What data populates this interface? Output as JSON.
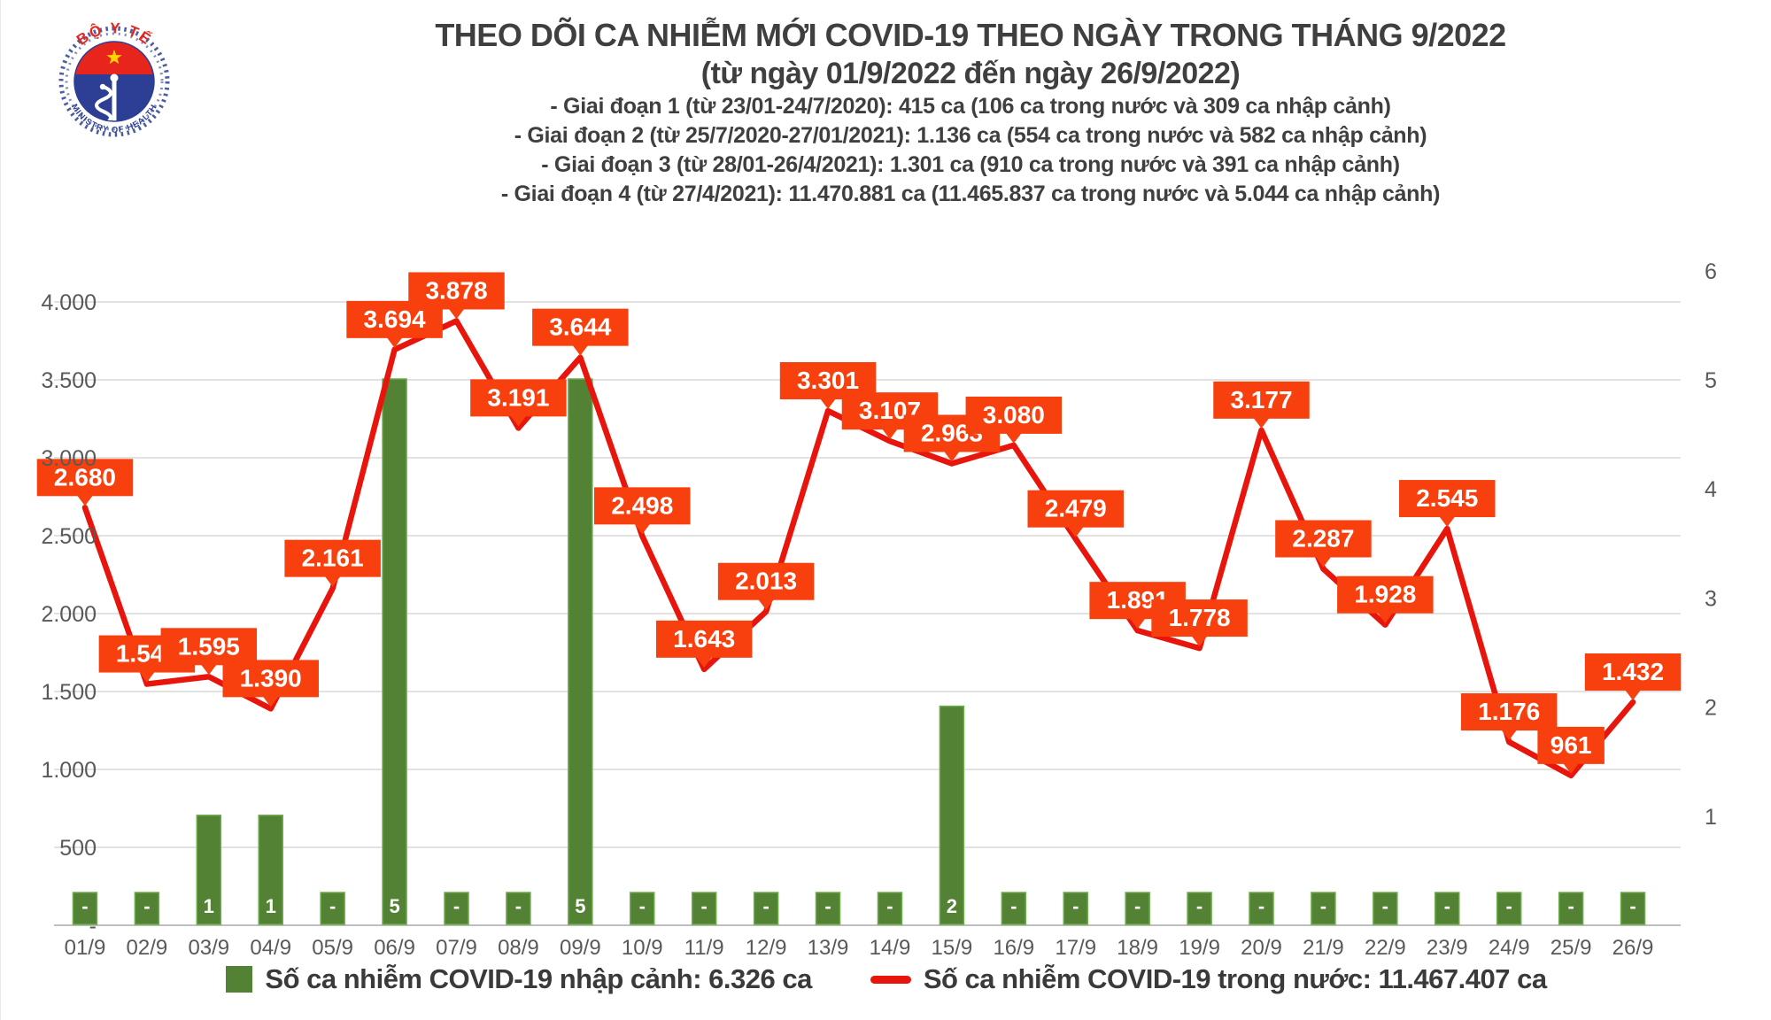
{
  "logo": {
    "top_text": "BỘ Y TẾ",
    "bottom_text": "MINISTRY OF HEALTH",
    "flag_red": "#e8251c",
    "circle_blue": "#2c3f94",
    "star_yellow": "#ffd400"
  },
  "header": {
    "title": "THEO DÕI CA NHIỄM MỚI COVID-19 THEO NGÀY TRONG THÁNG 9/2022",
    "subtitle": "(từ ngày 01/9/2022 đến ngày 26/9/2022)",
    "phases": [
      "- Giai đoạn 1 (từ 23/01-24/7/2020): 415 ca (106 ca trong nước và 309 ca nhập cảnh)",
      "- Giai đoạn 2 (từ 25/7/2020-27/01/2021): 1.136 ca (554 ca trong nước và 582 ca nhập cảnh)",
      "- Giai đoạn 3 (từ 28/01-26/4/2021): 1.301 ca (910 ca trong nước và 391 ca nhập cảnh)",
      "- Giai đoạn 4 (từ 27/4/2021): 11.470.881 ca (11.465.837 ca trong nước và 5.044 ca nhập cảnh)"
    ]
  },
  "chart_data": {
    "type": "combo",
    "categories": [
      "01/9",
      "02/9",
      "03/9",
      "04/9",
      "05/9",
      "06/9",
      "07/9",
      "08/9",
      "09/9",
      "10/9",
      "11/9",
      "12/9",
      "13/9",
      "14/9",
      "15/9",
      "16/9",
      "17/9",
      "18/9",
      "19/9",
      "20/9",
      "21/9",
      "22/9",
      "23/9",
      "24/9",
      "25/9",
      "26/9"
    ],
    "series": [
      {
        "name": "Số ca nhiễm COVID-19 trong nước",
        "type": "line",
        "axis": "left",
        "color": "#e8150d",
        "values": [
          2680,
          1548,
          1595,
          1390,
          2161,
          3694,
          3878,
          3191,
          3644,
          2498,
          1643,
          2013,
          3301,
          3107,
          2963,
          3080,
          2479,
          1891,
          1778,
          3177,
          2287,
          1928,
          2545,
          1176,
          961,
          1432
        ],
        "labels": [
          "2.680",
          "1.548",
          "1.595",
          "1.390",
          "2.161",
          "3.694",
          "3.878",
          "3.191",
          "3.644",
          "2.498",
          "1.643",
          "2.013",
          "3.301",
          "3.107",
          "2.963",
          "3.080",
          "2.479",
          "1.891",
          "1.778",
          "3.177",
          "2.287",
          "1.928",
          "2.545",
          "1.176",
          "961",
          "1.432"
        ]
      },
      {
        "name": "Số ca nhiễm COVID-19 nhập cảnh",
        "type": "bar",
        "axis": "right",
        "color": "#548235",
        "border_color": "#6bac4b",
        "values": [
          0,
          0,
          1,
          1,
          0,
          5,
          0,
          0,
          5,
          0,
          0,
          0,
          0,
          0,
          2,
          0,
          0,
          0,
          0,
          0,
          0,
          0,
          0,
          0,
          0,
          0
        ],
        "labels": [
          "-",
          "-",
          "1",
          "1",
          "-",
          "5",
          "-",
          "-",
          "5",
          "-",
          "-",
          "-",
          "-",
          "-",
          "2",
          "-",
          "-",
          "-",
          "-",
          "-",
          "-",
          "-",
          "-",
          "-",
          "-",
          "-"
        ]
      }
    ],
    "y_left": {
      "min": 0,
      "max": 4000,
      "step": 500,
      "ticks": [
        "-",
        "500",
        "1.000",
        "1.500",
        "2.000",
        "2.500",
        "3.000",
        "3.500",
        "4.000"
      ]
    },
    "y_right": {
      "min": 0,
      "max": 6,
      "ticks": [
        "1",
        "2",
        "3",
        "4",
        "5",
        "6"
      ]
    },
    "label_bg": "#f8400f",
    "label_text_color": "#ffffff",
    "grid_color": "#d9d9d9",
    "axis_line_color": "#bfbfbf",
    "axis_text_color": "#595959",
    "grid": true,
    "legend_position": "bottom"
  },
  "legend": {
    "items": [
      {
        "swatch": "bar",
        "label": "Số ca nhiễm COVID-19 nhập cảnh: 6.326 ca"
      },
      {
        "swatch": "line",
        "label": "Số ca nhiễm COVID-19 trong nước: 11.467.407 ca"
      }
    ]
  }
}
